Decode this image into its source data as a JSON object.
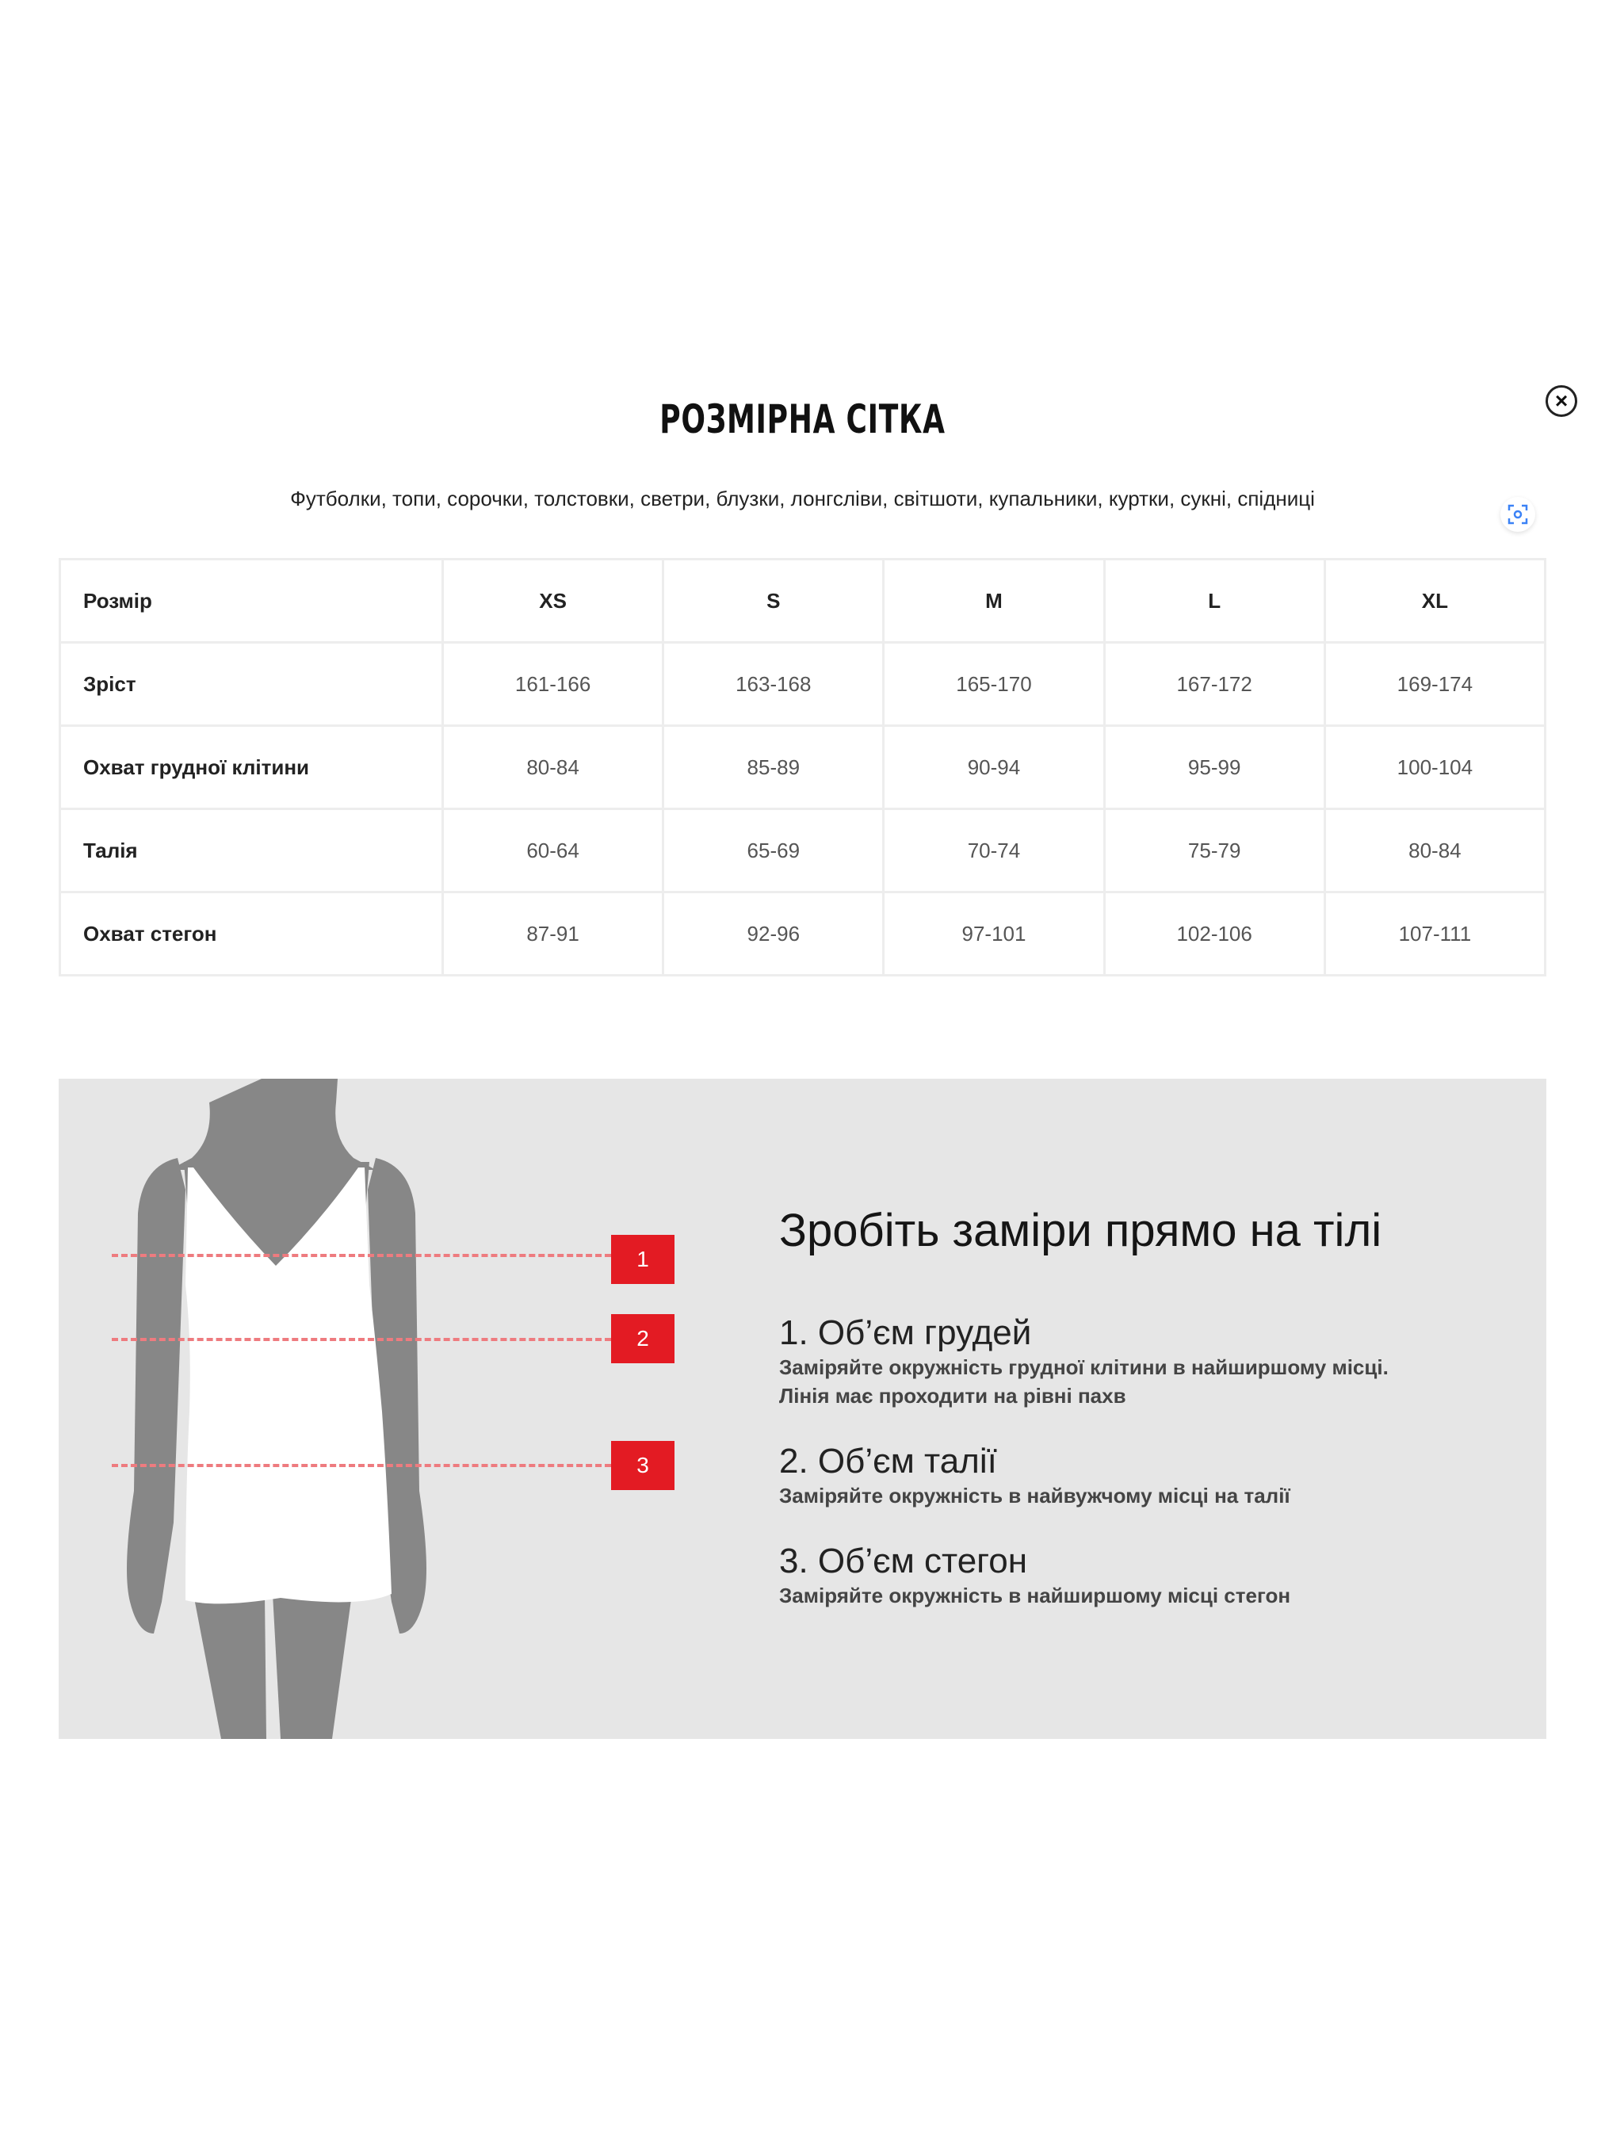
{
  "modal": {
    "title": "РОЗМІРНА СІТКА",
    "subtitle": "Футболки, топи, сорочки, толстовки, светри, блузки, лонгсліви, світшоти, купальники, куртки, сукні, спідниці",
    "close_icon": "close-circle-icon",
    "scan_icon": "image-search-icon",
    "accent_color": "#e31b23"
  },
  "size_table": {
    "header": [
      "Розмір",
      "XS",
      "S",
      "M",
      "L",
      "XL"
    ],
    "rows": [
      [
        "Зріст",
        "161-166",
        "163-168",
        "165-170",
        "167-172",
        "169-174"
      ],
      [
        "Охват грудної клітини",
        "80-84",
        "85-89",
        "90-94",
        "95-99",
        "100-104"
      ],
      [
        "Талія",
        "60-64",
        "65-69",
        "70-74",
        "75-79",
        "80-84"
      ],
      [
        "Охват стегон",
        "87-91",
        "92-96",
        "97-101",
        "102-106",
        "107-111"
      ]
    ]
  },
  "howto": {
    "title": "Зробіть заміри прямо на тілі",
    "badges": [
      "1",
      "2",
      "3"
    ],
    "items": [
      {
        "title": "1. Об’єм грудей",
        "desc": [
          "Заміряйте окружність грудної клітини в найширшому місці.",
          "Лінія має проходити на рівні пахв"
        ]
      },
      {
        "title": "2. Об’єм талії",
        "desc": [
          "Заміряйте окружність в найвужчому місці на талії"
        ]
      },
      {
        "title": "3. Об’єм стегон",
        "desc": [
          "Заміряйте окружність в найширшому місці стегон"
        ]
      }
    ]
  }
}
